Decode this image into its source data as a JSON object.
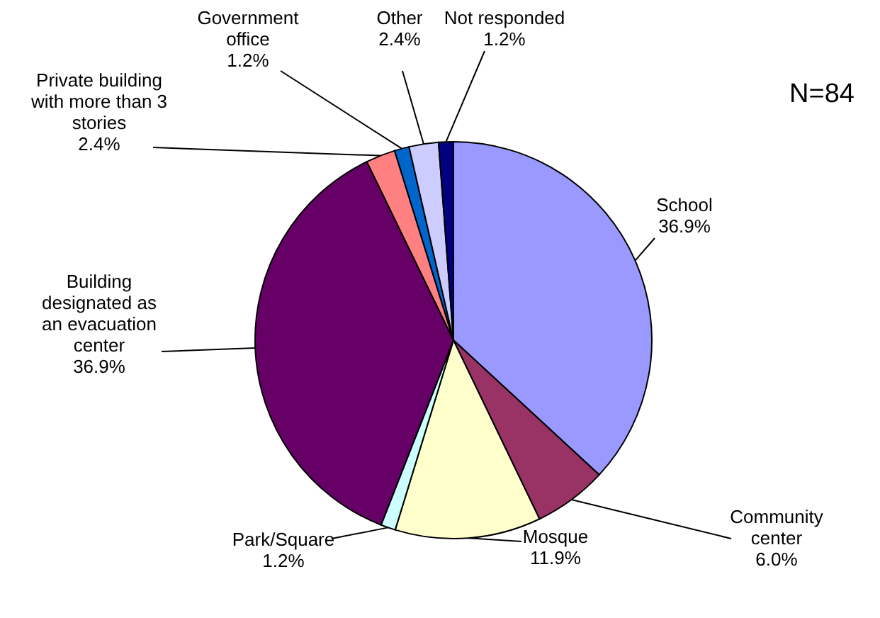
{
  "chart_data": {
    "type": "pie",
    "categories": [
      "School",
      "Community center",
      "Mosque",
      "Park/Square",
      "Building designated as an evacuation center",
      "Private building with more than 3 stories",
      "Government office",
      "Other",
      "Not responded"
    ],
    "values": [
      36.9,
      6.0,
      11.9,
      1.2,
      36.9,
      2.4,
      1.2,
      2.4,
      1.2
    ],
    "value_labels": [
      "36.9%",
      "6.0%",
      "11.9%",
      "1.2%",
      "36.9%",
      "2.4%",
      "1.2%",
      "2.4%",
      "1.2%"
    ],
    "colors": [
      "#9999ff",
      "#993366",
      "#ffffcc",
      "#ccffff",
      "#660066",
      "#ff8080",
      "#0066cc",
      "#ccccff",
      "#000080"
    ],
    "annotations": [
      "N=84"
    ]
  }
}
